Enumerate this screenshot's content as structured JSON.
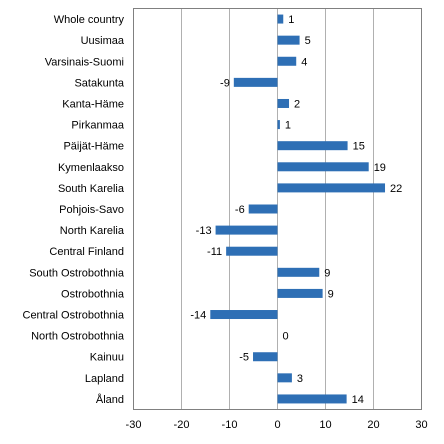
{
  "chart_data": {
    "type": "bar",
    "orientation": "horizontal",
    "categories": [
      "Whole country",
      "Uusimaa",
      "Varsinais-Suomi",
      "Satakunta",
      "Kanta-Häme",
      "Pirkanmaa",
      "Päijät-Häme",
      "Kymenlaakso",
      "South Karelia",
      "Pohjois-Savo",
      "North Karelia",
      "Central Finland",
      "South Ostrobothnia",
      "Ostrobothnia",
      "Central Ostrobothnia",
      "North Ostrobothnia",
      "Kainuu",
      "Lapland",
      "Åland"
    ],
    "values": [
      1.2,
      4.6,
      3.9,
      -9.1,
      2.4,
      0.5,
      14.6,
      19.0,
      22.4,
      -6.0,
      -12.9,
      -10.7,
      8.7,
      9.4,
      -14.0,
      0.0,
      -5.1,
      3.0,
      14.4
    ],
    "data_labels": [
      "1",
      "5",
      "4",
      "-9",
      "2",
      "1",
      "15",
      "19",
      "22",
      "-6",
      "-13",
      "-11",
      "9",
      "9",
      "-14",
      "0",
      "-5",
      "3",
      "14"
    ],
    "xlim": [
      -30,
      30
    ],
    "xticks": [
      -30,
      -20,
      -10,
      0,
      10,
      20,
      30
    ],
    "xtick_labels": [
      "-30",
      "-20",
      "-10",
      "0",
      "10",
      "20",
      "30"
    ],
    "grid": "vertical",
    "legend": "none",
    "bar_color": "#2e6fb5",
    "title": "",
    "xlabel": "",
    "ylabel": ""
  }
}
